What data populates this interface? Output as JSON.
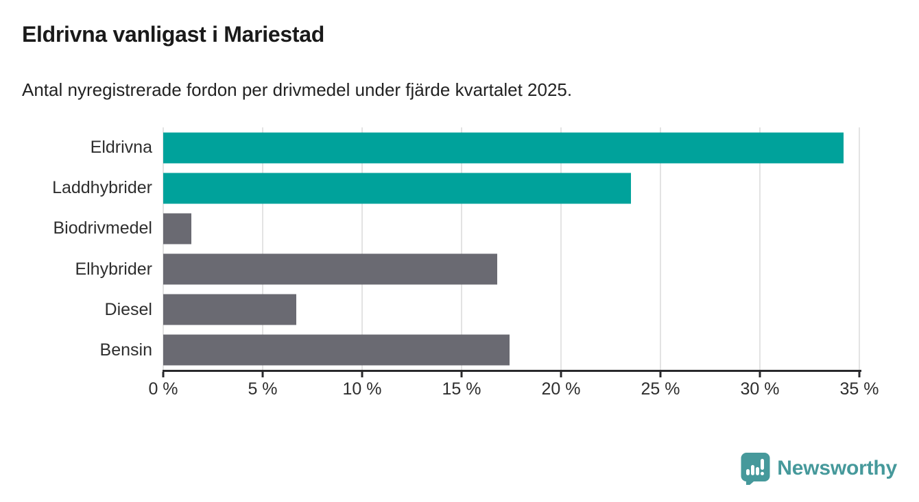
{
  "header": {
    "title": "Eldrivna vanligast i Mariestad",
    "subtitle": "Antal nyregistrerade fordon per drivmedel under fjärde kvartalet 2025."
  },
  "chart_data": {
    "type": "bar",
    "orientation": "horizontal",
    "title": "Eldrivna vanligast i Mariestad",
    "subtitle": "Antal nyregistrerade fordon per drivmedel under fjärde kvartalet 2025.",
    "categories": [
      "Eldrivna",
      "Laddhybrider",
      "Biodrivmedel",
      "Elhybrider",
      "Diesel",
      "Bensin"
    ],
    "values": [
      34.2,
      23.5,
      1.4,
      16.8,
      6.7,
      17.4
    ],
    "unit": "%",
    "xlabel": "",
    "ylabel": "",
    "xlim": [
      0,
      35
    ],
    "x_ticks": [
      0,
      5,
      10,
      15,
      20,
      25,
      30,
      35
    ],
    "x_tick_labels": [
      "0 %",
      "5 %",
      "10 %",
      "15 %",
      "20 %",
      "25 %",
      "30 %",
      "35 %"
    ],
    "bar_colors": [
      "#00a29b",
      "#00a29b",
      "#6a6a72",
      "#6a6a72",
      "#6a6a72",
      "#6a6a72"
    ],
    "highlight_color": "#00a29b",
    "default_color": "#6a6a72",
    "grid": true,
    "gridline_color": "#e3e3e3",
    "legend": "none"
  },
  "footer": {
    "brand": "Newsworthy",
    "brand_color": "#46999b"
  }
}
